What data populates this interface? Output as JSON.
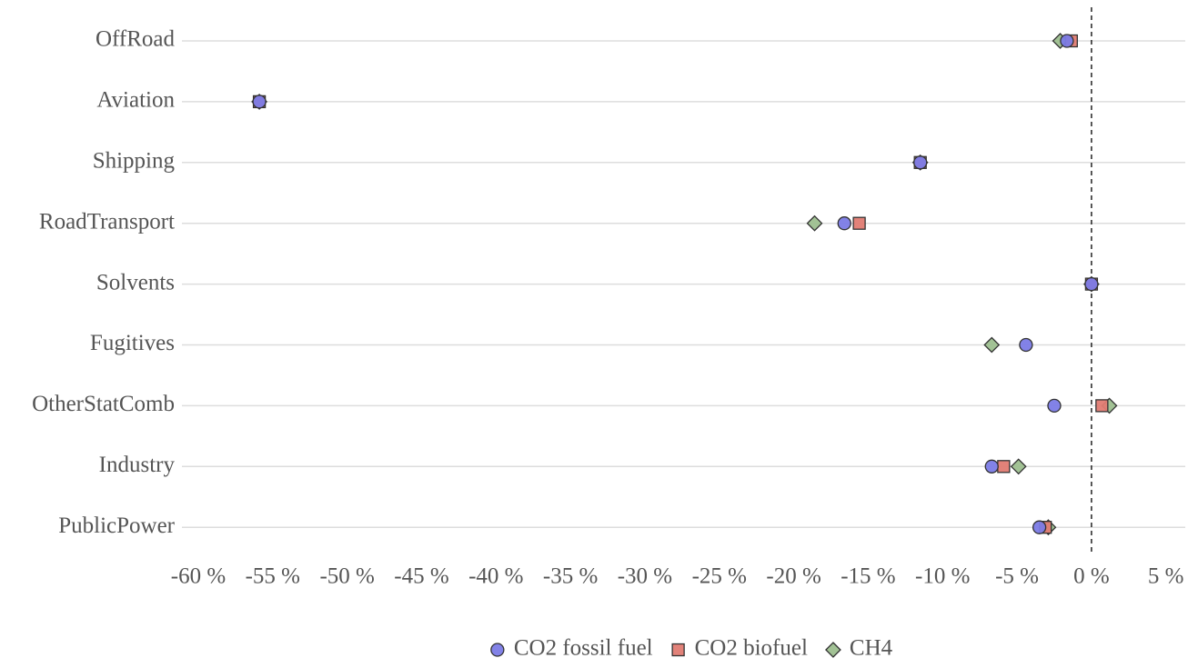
{
  "chart_data": {
    "type": "dot",
    "categories": [
      "OffRoad",
      "Aviation",
      "Shipping",
      "RoadTransport",
      "Solvents",
      "Fugitives",
      "OtherStatComb",
      "Industry",
      "PublicPower"
    ],
    "series": [
      {
        "name": "CO2 fossil fuel",
        "color": "#7b7be6",
        "marker": "circle",
        "values": [
          -1.65,
          -55.9,
          -11.5,
          -16.6,
          0,
          -4.4,
          -2.5,
          -6.7,
          -3.5
        ]
      },
      {
        "name": "CO2 biofuel",
        "color": "#e07b72",
        "marker": "square",
        "values": [
          -1.35,
          -55.9,
          -11.5,
          -15.6,
          0,
          null,
          0.7,
          -5.9,
          -3.1
        ]
      },
      {
        "name": "CH4",
        "color": "#9dbf8f",
        "marker": "diamond",
        "values": [
          -2.1,
          -55.9,
          -11.5,
          -18.6,
          0,
          -6.7,
          1.2,
          -4.9,
          -2.9
        ]
      }
    ],
    "xlim": [
      -61.1,
      6.3
    ],
    "xticks": [
      {
        "value": -60,
        "label": "-60 %"
      },
      {
        "value": -55,
        "label": "-55 %"
      },
      {
        "value": -50,
        "label": "-50 %"
      },
      {
        "value": -45,
        "label": "-45 %"
      },
      {
        "value": -40,
        "label": "-40 %"
      },
      {
        "value": -35,
        "label": "-35 %"
      },
      {
        "value": -30,
        "label": "-30 %"
      },
      {
        "value": -25,
        "label": "-25 %"
      },
      {
        "value": -20,
        "label": "-20 %"
      },
      {
        "value": -15,
        "label": "-15 %"
      },
      {
        "value": -10,
        "label": "-10 %"
      },
      {
        "value": -5,
        "label": "-5 %"
      },
      {
        "value": 0,
        "label": "0 %"
      },
      {
        "value": 5,
        "label": "5 %"
      }
    ],
    "reference_line": 0,
    "legend": "bottom"
  }
}
